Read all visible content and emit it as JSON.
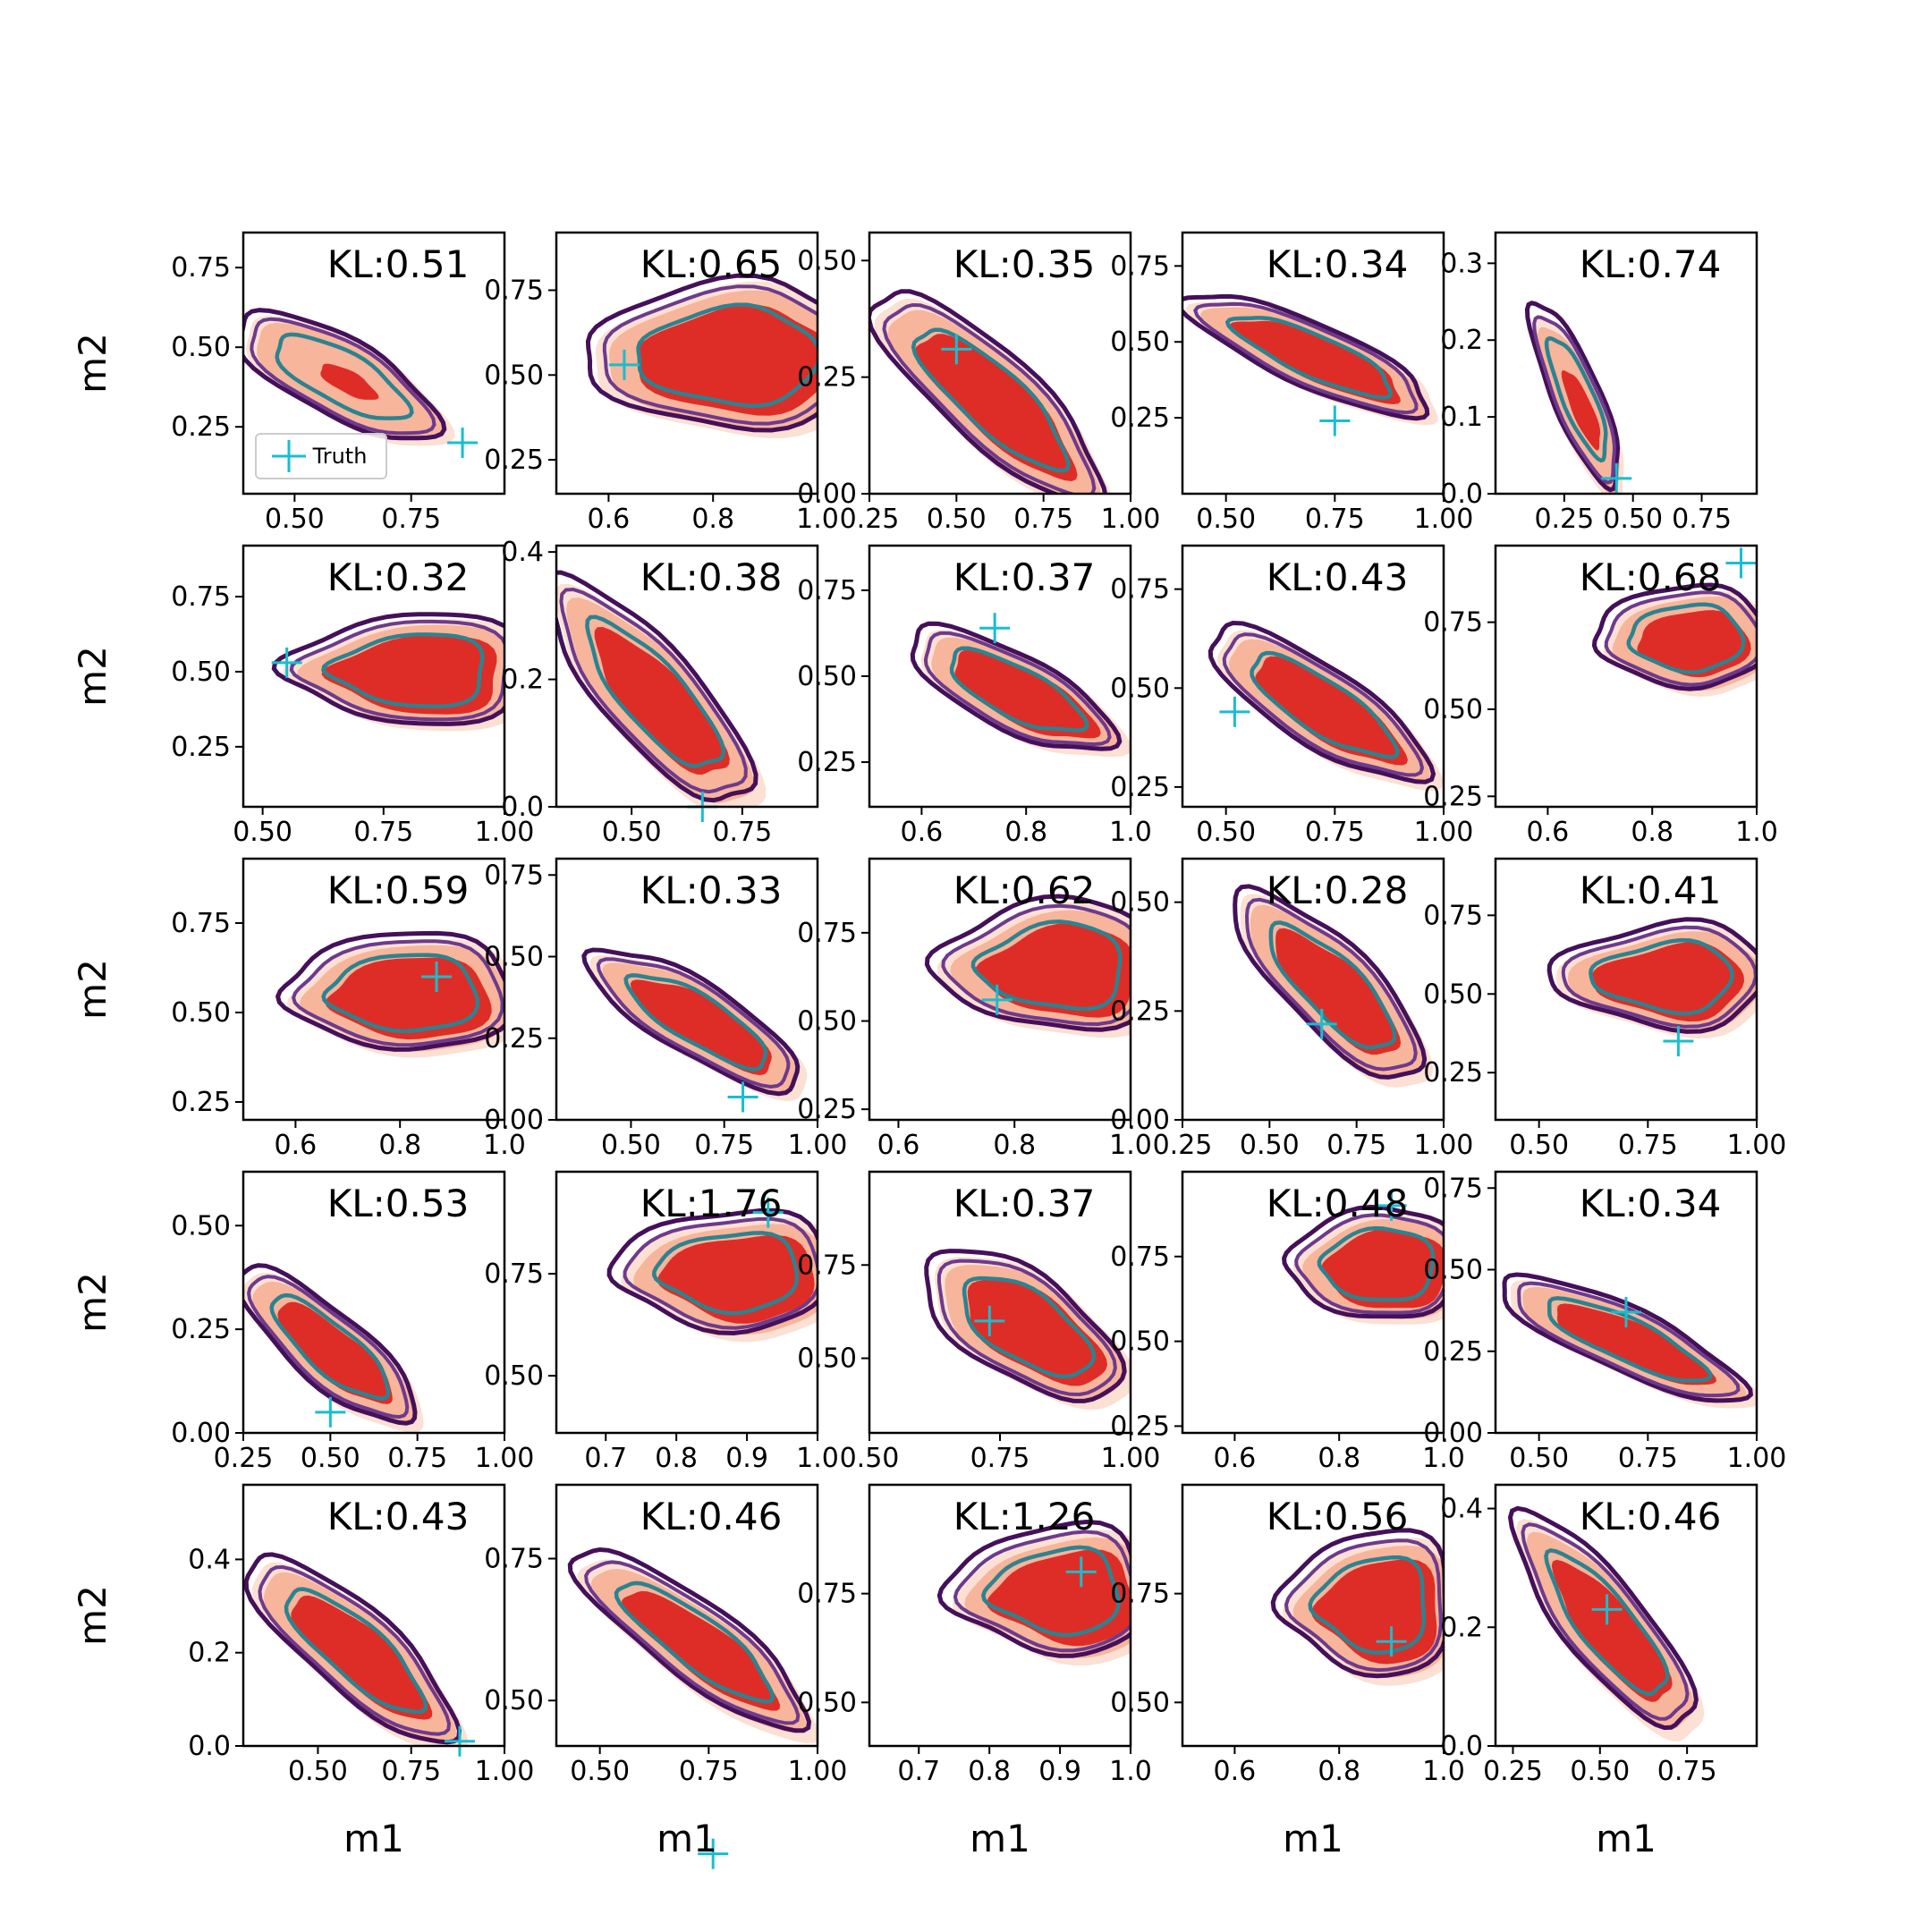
{
  "figure": {
    "xlabel": "m1",
    "ylabel": "m2",
    "legend": {
      "label": "Truth",
      "location": "lower-left",
      "panel": 0
    },
    "colors": {
      "fill_outer": "#fbe0d3",
      "fill_mid": "#f7b59b",
      "fill_inner": "#de2d26",
      "contour_outer": "#45105a",
      "contour_mid": "#6d3a8c",
      "contour_inner": "#2c8390",
      "truth": "#17becf"
    }
  },
  "chart_data": [
    {
      "type": "contour",
      "title": "KL:0.51",
      "xlim": [
        0.39,
        0.95
      ],
      "ylim": [
        0.04,
        0.86
      ],
      "xticks": [
        0.5,
        0.75
      ],
      "yticks": [
        0.25,
        0.5,
        0.75
      ],
      "truth": [
        0.86,
        0.2
      ],
      "shape": "diag",
      "cx": 0.6,
      "cy": 0.4,
      "w": 0.5,
      "h": 0.45,
      "fill": 0.2,
      "show_ylabel": true
    },
    {
      "type": "contour",
      "title": "KL:0.65",
      "xlim": [
        0.5,
        1.0
      ],
      "ylim": [
        0.15,
        0.92
      ],
      "xticks": [
        0.6,
        0.8,
        1.0
      ],
      "yticks": [
        0.25,
        0.5,
        0.75
      ],
      "truth": [
        0.63,
        0.53
      ],
      "shape": "up",
      "cx": 0.82,
      "cy": 0.55,
      "w": 0.48,
      "h": 0.6,
      "fill": 0.8
    },
    {
      "type": "contour",
      "title": "KL:0.35",
      "xlim": [
        0.25,
        1.0
      ],
      "ylim": [
        0.0,
        0.56
      ],
      "xticks": [
        0.25,
        0.5,
        0.75,
        1.0
      ],
      "yticks": [
        0.0,
        0.25,
        0.5
      ],
      "truth": [
        0.5,
        0.31
      ],
      "shape": "diag",
      "cx": 0.6,
      "cy": 0.2,
      "w": 0.7,
      "h": 0.45,
      "fill": 0.75
    },
    {
      "type": "contour",
      "title": "KL:0.34",
      "xlim": [
        0.4,
        1.0
      ],
      "ylim": [
        0.0,
        0.86
      ],
      "xticks": [
        0.5,
        0.75,
        1.0
      ],
      "yticks": [
        0.25,
        0.5,
        0.75
      ],
      "truth": [
        0.75,
        0.24
      ],
      "shape": "diag",
      "cx": 0.7,
      "cy": 0.45,
      "w": 0.6,
      "h": 0.4,
      "fill": 0.75
    },
    {
      "type": "contour",
      "title": "KL:0.74",
      "xlim": [
        0.0,
        0.95
      ],
      "ylim": [
        0.0,
        0.34
      ],
      "xticks": [
        0.25,
        0.5,
        0.75
      ],
      "yticks": [
        0.0,
        0.1,
        0.2,
        0.3
      ],
      "truth": [
        0.44,
        0.02
      ],
      "shape": "diag",
      "cx": 0.3,
      "cy": 0.12,
      "w": 0.35,
      "h": 0.24,
      "fill": 0.4
    },
    {
      "type": "contour",
      "title": "KL:0.32",
      "xlim": [
        0.46,
        1.0
      ],
      "ylim": [
        0.05,
        0.92
      ],
      "xticks": [
        0.5,
        0.75,
        1.0
      ],
      "yticks": [
        0.25,
        0.5,
        0.75
      ],
      "truth": [
        0.55,
        0.53
      ],
      "shape": "up",
      "cx": 0.8,
      "cy": 0.5,
      "w": 0.45,
      "h": 0.5,
      "fill": 0.8,
      "show_ylabel": true
    },
    {
      "type": "contour",
      "title": "KL:0.38",
      "xlim": [
        0.33,
        0.92
      ],
      "ylim": [
        0.0,
        0.41
      ],
      "xticks": [
        0.5,
        0.75
      ],
      "yticks": [
        0.0,
        0.2,
        0.4
      ],
      "truth": [
        0.66,
        0.0
      ],
      "shape": "diag",
      "cx": 0.55,
      "cy": 0.17,
      "w": 0.5,
      "h": 0.36,
      "fill": 0.7
    },
    {
      "type": "contour",
      "title": "KL:0.37",
      "xlim": [
        0.5,
        1.0
      ],
      "ylim": [
        0.12,
        0.88
      ],
      "xticks": [
        0.6,
        0.8,
        1.0
      ],
      "yticks": [
        0.25,
        0.5,
        0.75
      ],
      "truth": [
        0.74,
        0.64
      ],
      "shape": "diag",
      "cx": 0.78,
      "cy": 0.45,
      "w": 0.45,
      "h": 0.4,
      "fill": 0.78
    },
    {
      "type": "contour",
      "title": "KL:0.43",
      "xlim": [
        0.4,
        1.0
      ],
      "ylim": [
        0.2,
        0.86
      ],
      "xticks": [
        0.5,
        0.75,
        1.0
      ],
      "yticks": [
        0.25,
        0.5,
        0.75
      ],
      "truth": [
        0.52,
        0.44
      ],
      "shape": "diag",
      "cx": 0.72,
      "cy": 0.45,
      "w": 0.55,
      "h": 0.4,
      "fill": 0.75
    },
    {
      "type": "contour",
      "title": "KL:0.68",
      "xlim": [
        0.5,
        1.0
      ],
      "ylim": [
        0.22,
        0.97
      ],
      "xticks": [
        0.6,
        0.8,
        1.0
      ],
      "yticks": [
        0.25,
        0.5,
        0.75
      ],
      "truth": [
        0.97,
        0.92
      ],
      "shape": "up",
      "cx": 0.86,
      "cy": 0.7,
      "w": 0.3,
      "h": 0.4,
      "fill": 0.7
    },
    {
      "type": "contour",
      "title": "KL:0.59",
      "xlim": [
        0.5,
        1.0
      ],
      "ylim": [
        0.2,
        0.93
      ],
      "xticks": [
        0.6,
        0.8,
        1.0
      ],
      "yticks": [
        0.25,
        0.5,
        0.75
      ],
      "truth": [
        0.87,
        0.6
      ],
      "shape": "up",
      "cx": 0.8,
      "cy": 0.55,
      "w": 0.4,
      "h": 0.45,
      "fill": 0.78,
      "show_ylabel": true
    },
    {
      "type": "contour",
      "title": "KL:0.33",
      "xlim": [
        0.3,
        1.0
      ],
      "ylim": [
        0.0,
        0.8
      ],
      "xticks": [
        0.5,
        0.75,
        1.0
      ],
      "yticks": [
        0.0,
        0.25,
        0.5,
        0.75
      ],
      "truth": [
        0.8,
        0.07
      ],
      "shape": "diag",
      "cx": 0.68,
      "cy": 0.3,
      "w": 0.62,
      "h": 0.44,
      "fill": 0.72
    },
    {
      "type": "contour",
      "title": "KL:0.62",
      "xlim": [
        0.55,
        1.0
      ],
      "ylim": [
        0.22,
        0.96
      ],
      "xticks": [
        0.6,
        0.8,
        1.0
      ],
      "yticks": [
        0.25,
        0.5,
        0.75
      ],
      "truth": [
        0.77,
        0.56
      ],
      "shape": "up",
      "cx": 0.86,
      "cy": 0.65,
      "w": 0.35,
      "h": 0.5,
      "fill": 0.78
    },
    {
      "type": "contour",
      "title": "KL:0.28",
      "xlim": [
        0.25,
        1.0
      ],
      "ylim": [
        0.0,
        0.6
      ],
      "xticks": [
        0.25,
        0.5,
        0.75,
        1.0
      ],
      "yticks": [
        0.0,
        0.25,
        0.5
      ],
      "truth": [
        0.65,
        0.22
      ],
      "shape": "diag",
      "cx": 0.68,
      "cy": 0.3,
      "w": 0.6,
      "h": 0.45,
      "fill": 0.72
    },
    {
      "type": "contour",
      "title": "KL:0.41",
      "xlim": [
        0.4,
        1.0
      ],
      "ylim": [
        0.1,
        0.93
      ],
      "xticks": [
        0.5,
        0.75,
        1.0
      ],
      "yticks": [
        0.25,
        0.5,
        0.75
      ],
      "truth": [
        0.82,
        0.35
      ],
      "shape": "up",
      "cx": 0.78,
      "cy": 0.55,
      "w": 0.45,
      "h": 0.45,
      "fill": 0.78
    },
    {
      "type": "contour",
      "title": "KL:0.53",
      "xlim": [
        0.25,
        1.0
      ],
      "ylim": [
        0.0,
        0.63
      ],
      "xticks": [
        0.25,
        0.5,
        0.75,
        1.0
      ],
      "yticks": [
        0.0,
        0.25,
        0.5
      ],
      "truth": [
        0.5,
        0.05
      ],
      "shape": "diag",
      "cx": 0.5,
      "cy": 0.2,
      "w": 0.55,
      "h": 0.38,
      "fill": 0.7,
      "show_ylabel": true
    },
    {
      "type": "contour",
      "title": "KL:1.76",
      "xlim": [
        0.63,
        1.0
      ],
      "ylim": [
        0.36,
        1.0
      ],
      "xticks": [
        0.7,
        0.8,
        0.9,
        1.0
      ],
      "yticks": [
        0.5,
        0.75
      ],
      "truth": [
        0.93,
        0.9
      ],
      "shape": "up",
      "cx": 0.87,
      "cy": 0.75,
      "w": 0.28,
      "h": 0.4,
      "fill": 0.8
    },
    {
      "type": "contour",
      "title": "KL:0.37",
      "xlim": [
        0.5,
        1.0
      ],
      "ylim": [
        0.3,
        1.0
      ],
      "xticks": [
        0.5,
        0.75,
        1.0
      ],
      "yticks": [
        0.5,
        0.75
      ],
      "truth": [
        0.73,
        0.6
      ],
      "shape": "diag",
      "cx": 0.8,
      "cy": 0.58,
      "w": 0.45,
      "h": 0.5,
      "fill": 0.78
    },
    {
      "type": "contour",
      "title": "KL:0.48",
      "xlim": [
        0.5,
        1.0
      ],
      "ylim": [
        0.23,
        1.0
      ],
      "xticks": [
        0.6,
        0.8,
        1.0
      ],
      "yticks": [
        0.25,
        0.5,
        0.75
      ],
      "truth": [
        0.9,
        0.9
      ],
      "shape": "up",
      "cx": 0.87,
      "cy": 0.72,
      "w": 0.3,
      "h": 0.45,
      "fill": 0.8
    },
    {
      "type": "contour",
      "title": "KL:0.34",
      "xlim": [
        0.4,
        1.0
      ],
      "ylim": [
        0.0,
        0.8
      ],
      "xticks": [
        0.5,
        0.75,
        1.0
      ],
      "yticks": [
        0.0,
        0.25,
        0.5,
        0.75
      ],
      "truth": [
        0.7,
        0.37
      ],
      "shape": "diag",
      "cx": 0.7,
      "cy": 0.28,
      "w": 0.6,
      "h": 0.38,
      "fill": 0.7
    },
    {
      "type": "contour",
      "title": "KL:0.43",
      "xlim": [
        0.3,
        1.0
      ],
      "ylim": [
        0.0,
        0.56
      ],
      "xticks": [
        0.5,
        0.75,
        1.0
      ],
      "yticks": [
        0.0,
        0.2,
        0.4
      ],
      "truth": [
        0.88,
        0.01
      ],
      "shape": "diag",
      "cx": 0.6,
      "cy": 0.2,
      "w": 0.6,
      "h": 0.4,
      "fill": 0.72,
      "show_ylabel": true,
      "show_xlabel": true
    },
    {
      "type": "contour",
      "title": "KL:0.46",
      "xlim": [
        0.4,
        1.0
      ],
      "ylim": [
        0.42,
        0.88
      ],
      "xticks": [
        0.5,
        0.75,
        1.0
      ],
      "yticks": [
        0.5,
        0.75
      ],
      "truth": [
        0.76,
        0.23
      ],
      "shape": "diag",
      "cx": 0.72,
      "cy": 0.6,
      "w": 0.55,
      "h": 0.3,
      "fill": 0.72,
      "show_xlabel": true
    },
    {
      "type": "contour",
      "title": "KL:1.26",
      "xlim": [
        0.63,
        1.0
      ],
      "ylim": [
        0.4,
        1.0
      ],
      "xticks": [
        0.7,
        0.8,
        0.9,
        1.0
      ],
      "yticks": [
        0.5,
        0.75
      ],
      "truth": [
        0.93,
        0.8
      ],
      "shape": "up",
      "cx": 0.89,
      "cy": 0.75,
      "w": 0.26,
      "h": 0.4,
      "fill": 0.8,
      "show_xlabel": true
    },
    {
      "type": "contour",
      "title": "KL:0.56",
      "xlim": [
        0.5,
        1.0
      ],
      "ylim": [
        0.4,
        1.0
      ],
      "xticks": [
        0.6,
        0.8,
        1.0
      ],
      "yticks": [
        0.5,
        0.75
      ],
      "truth": [
        0.9,
        0.64
      ],
      "shape": "up",
      "cx": 0.86,
      "cy": 0.72,
      "w": 0.3,
      "h": 0.45,
      "fill": 0.8,
      "show_xlabel": true
    },
    {
      "type": "contour",
      "title": "KL:0.46",
      "xlim": [
        0.2,
        0.95
      ],
      "ylim": [
        0.0,
        0.44
      ],
      "xticks": [
        0.25,
        0.5,
        0.75
      ],
      "yticks": [
        0.0,
        0.2,
        0.4
      ],
      "truth": [
        0.52,
        0.23
      ],
      "shape": "diag",
      "cx": 0.52,
      "cy": 0.2,
      "w": 0.55,
      "h": 0.36,
      "fill": 0.7,
      "show_xlabel": true
    }
  ]
}
